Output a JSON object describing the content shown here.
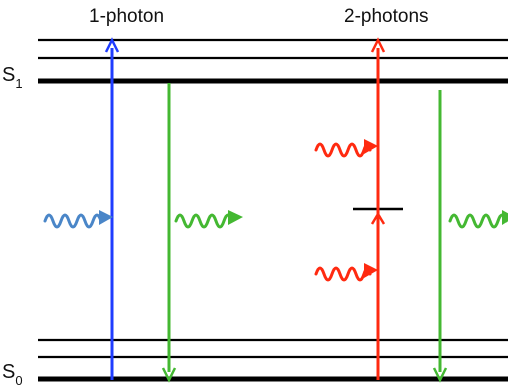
{
  "labels": {
    "one_photon": "1-photon",
    "two_photons": "2-photons",
    "s1_main": "S",
    "s1_sub": "1",
    "s0_main": "S",
    "s0_sub": "0"
  },
  "colors": {
    "level": "#000000",
    "excitation_one_photon": "#1f3cff",
    "excitation_two_photon": "#ff2a10",
    "emission": "#44b832",
    "photon_absorbed_one": "#4a86c8",
    "photon_absorbed_two": "#ff2a10",
    "photon_emitted": "#44b832"
  }
}
